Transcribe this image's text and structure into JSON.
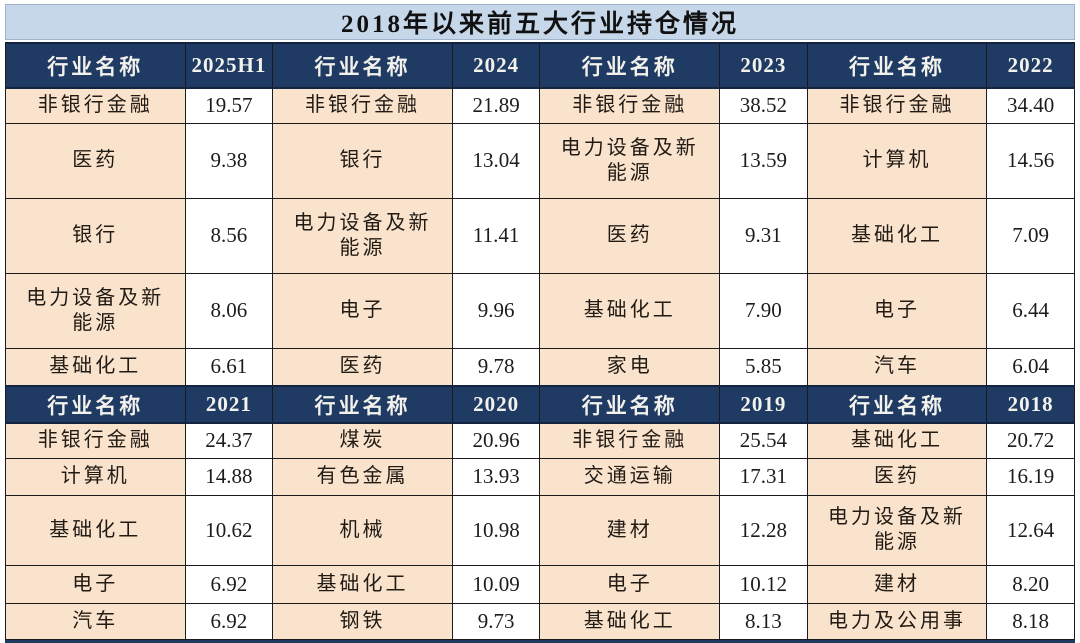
{
  "title": "2018年以来前五大行业持仓情况",
  "header_label": "行业名称",
  "colors": {
    "header_bg": "#1f3a63",
    "title_bg": "#c6d7e9",
    "industry_cell_bg": "#f9e3cd",
    "value_cell_bg": "#ffffff"
  },
  "sections": [
    {
      "years": [
        "2025H1",
        "2024",
        "2023",
        "2022"
      ],
      "rows": [
        [
          {
            "n": "非银行金融",
            "v": "19.57"
          },
          {
            "n": "非银行金融",
            "v": "21.89"
          },
          {
            "n": "非银行金融",
            "v": "38.52"
          },
          {
            "n": "非银行金融",
            "v": "34.40"
          }
        ],
        [
          {
            "n": "医药",
            "v": "9.38"
          },
          {
            "n": "银行",
            "v": "13.04"
          },
          {
            "n": "电力设备及新能源",
            "v": "13.59"
          },
          {
            "n": "计算机",
            "v": "14.56"
          }
        ],
        [
          {
            "n": "银行",
            "v": "8.56"
          },
          {
            "n": "电力设备及新能源",
            "v": "11.41"
          },
          {
            "n": "医药",
            "v": "9.31"
          },
          {
            "n": "基础化工",
            "v": "7.09"
          }
        ],
        [
          {
            "n": "电力设备及新能源",
            "v": "8.06"
          },
          {
            "n": "电子",
            "v": "9.96"
          },
          {
            "n": "基础化工",
            "v": "7.90"
          },
          {
            "n": "电子",
            "v": "6.44"
          }
        ],
        [
          {
            "n": "基础化工",
            "v": "6.61"
          },
          {
            "n": "医药",
            "v": "9.78"
          },
          {
            "n": "家电",
            "v": "5.85"
          },
          {
            "n": "汽车",
            "v": "6.04"
          }
        ]
      ]
    },
    {
      "years": [
        "2021",
        "2020",
        "2019",
        "2018"
      ],
      "rows": [
        [
          {
            "n": "非银行金融",
            "v": "24.37"
          },
          {
            "n": "煤炭",
            "v": "20.96"
          },
          {
            "n": "非银行金融",
            "v": "25.54"
          },
          {
            "n": "基础化工",
            "v": "20.72"
          }
        ],
        [
          {
            "n": "计算机",
            "v": "14.88"
          },
          {
            "n": "有色金属",
            "v": "13.93"
          },
          {
            "n": "交通运输",
            "v": "17.31"
          },
          {
            "n": "医药",
            "v": "16.19"
          }
        ],
        [
          {
            "n": "基础化工",
            "v": "10.62"
          },
          {
            "n": "机械",
            "v": "10.98"
          },
          {
            "n": "建材",
            "v": "12.28"
          },
          {
            "n": "电力设备及新能源",
            "v": "12.64"
          }
        ],
        [
          {
            "n": "电子",
            "v": "6.92"
          },
          {
            "n": "基础化工",
            "v": "10.09"
          },
          {
            "n": "电子",
            "v": "10.12"
          },
          {
            "n": "建材",
            "v": "8.20"
          }
        ],
        [
          {
            "n": "汽车",
            "v": "6.92"
          },
          {
            "n": "钢铁",
            "v": "9.73"
          },
          {
            "n": "基础化工",
            "v": "8.13"
          },
          {
            "n": "电力及公用事",
            "v": "8.18"
          }
        ]
      ]
    }
  ],
  "chart_data": {
    "type": "table",
    "title": "2018年以来前五大行业持仓情况",
    "column_header": "行业名称",
    "periods": [
      {
        "period": "2025H1",
        "top5": [
          [
            "非银行金融",
            19.57
          ],
          [
            "医药",
            9.38
          ],
          [
            "银行",
            8.56
          ],
          [
            "电力设备及新能源",
            8.06
          ],
          [
            "基础化工",
            6.61
          ]
        ]
      },
      {
        "period": "2024",
        "top5": [
          [
            "非银行金融",
            21.89
          ],
          [
            "银行",
            13.04
          ],
          [
            "电力设备及新能源",
            11.41
          ],
          [
            "电子",
            9.96
          ],
          [
            "医药",
            9.78
          ]
        ]
      },
      {
        "period": "2023",
        "top5": [
          [
            "非银行金融",
            38.52
          ],
          [
            "电力设备及新能源",
            13.59
          ],
          [
            "医药",
            9.31
          ],
          [
            "基础化工",
            7.9
          ],
          [
            "家电",
            5.85
          ]
        ]
      },
      {
        "period": "2022",
        "top5": [
          [
            "非银行金融",
            34.4
          ],
          [
            "计算机",
            14.56
          ],
          [
            "基础化工",
            7.09
          ],
          [
            "电子",
            6.44
          ],
          [
            "汽车",
            6.04
          ]
        ]
      },
      {
        "period": "2021",
        "top5": [
          [
            "非银行金融",
            24.37
          ],
          [
            "计算机",
            14.88
          ],
          [
            "基础化工",
            10.62
          ],
          [
            "电子",
            6.92
          ],
          [
            "汽车",
            6.92
          ]
        ]
      },
      {
        "period": "2020",
        "top5": [
          [
            "煤炭",
            20.96
          ],
          [
            "有色金属",
            13.93
          ],
          [
            "机械",
            10.98
          ],
          [
            "基础化工",
            10.09
          ],
          [
            "钢铁",
            9.73
          ]
        ]
      },
      {
        "period": "2019",
        "top5": [
          [
            "非银行金融",
            25.54
          ],
          [
            "交通运输",
            17.31
          ],
          [
            "建材",
            12.28
          ],
          [
            "电子",
            10.12
          ],
          [
            "基础化工",
            8.13
          ]
        ]
      },
      {
        "period": "2018",
        "top5": [
          [
            "基础化工",
            20.72
          ],
          [
            "医药",
            16.19
          ],
          [
            "电力设备及新能源",
            12.64
          ],
          [
            "建材",
            8.2
          ],
          [
            "电力及公用事",
            8.18
          ]
        ]
      }
    ]
  }
}
